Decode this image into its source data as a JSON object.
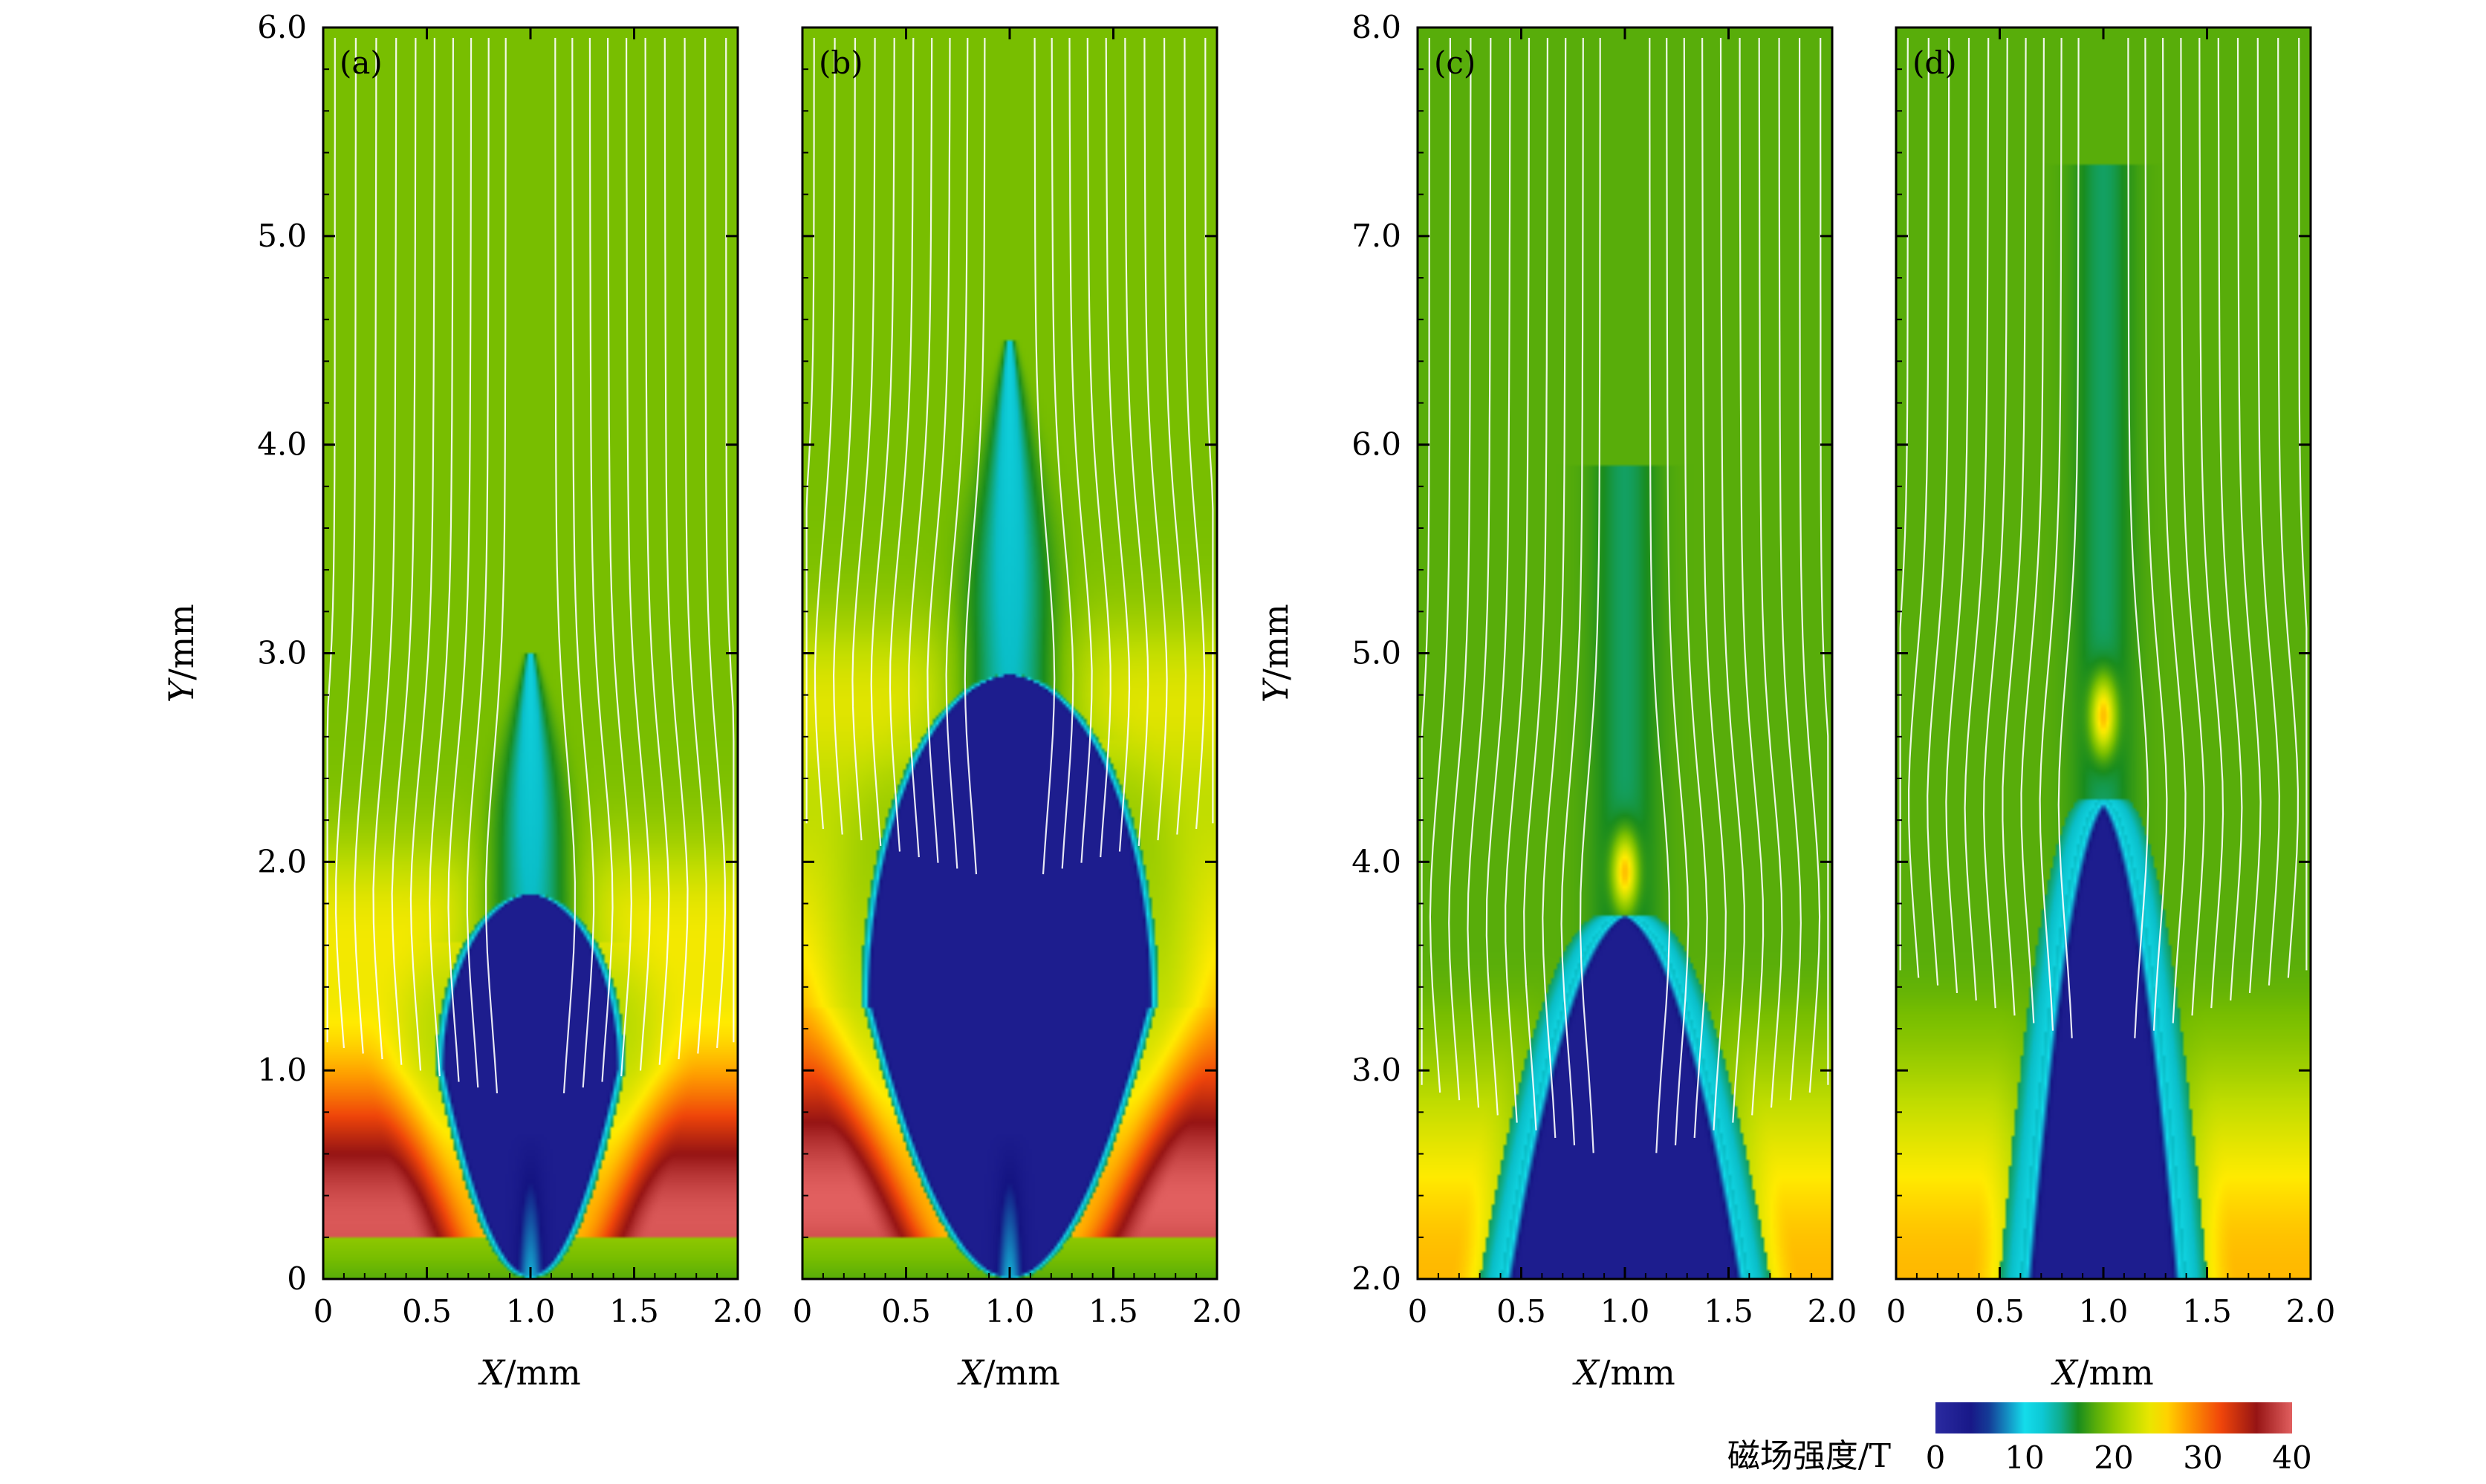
{
  "chart_data": [
    {
      "panel_label": "(a)",
      "type": "heatmap",
      "xlabel_var": "X",
      "xlabel_unit": "/mm",
      "ylabel_var": "Y",
      "ylabel_unit": "/mm",
      "xlim": [
        0,
        2.0
      ],
      "ylim": [
        0,
        6.0
      ],
      "x_ticks": [
        0,
        0.5,
        1.0,
        1.5,
        2.0
      ],
      "x_tick_labels": [
        "0",
        "0.5",
        "1.0",
        "1.5",
        "2.0"
      ],
      "y_ticks": [
        0,
        1.0,
        2.0,
        3.0,
        4.0,
        5.0,
        6.0
      ],
      "y_tick_labels": [
        "0",
        "1.0",
        "2.0",
        "3.0",
        "4.0",
        "5.0",
        "6.0"
      ],
      "show_y_tick_labels": true,
      "features": {
        "cavity_top": 1.85,
        "cavity_halfwidth": 0.46,
        "cavity_center_y": 1.0,
        "jet_tip": 3.0,
        "jet_width": 0.22,
        "shell_peak_y": 0.4,
        "background_field": 19
      }
    },
    {
      "panel_label": "(b)",
      "type": "heatmap",
      "xlabel_var": "X",
      "xlabel_unit": "/mm",
      "xlim": [
        0,
        2.0
      ],
      "ylim": [
        0,
        6.0
      ],
      "x_ticks": [
        0,
        0.5,
        1.0,
        1.5,
        2.0
      ],
      "x_tick_labels": [
        "0",
        "0.5",
        "1.0",
        "1.5",
        "2.0"
      ],
      "y_ticks": [
        0,
        1.0,
        2.0,
        3.0,
        4.0,
        5.0,
        6.0
      ],
      "show_y_tick_labels": false,
      "features": {
        "cavity_top": 2.9,
        "cavity_halfwidth": 0.72,
        "cavity_center_y": 1.3,
        "jet_tip": 4.5,
        "jet_width": 0.25,
        "shell_peak_y": 0.45,
        "background_field": 19
      }
    },
    {
      "panel_label": "(c)",
      "type": "heatmap",
      "xlabel_var": "X",
      "xlabel_unit": "/mm",
      "ylabel_var": "Y",
      "ylabel_unit": "/mm",
      "xlim": [
        0,
        2.0
      ],
      "ylim": [
        2.0,
        8.0
      ],
      "x_ticks": [
        0,
        0.5,
        1.0,
        1.5,
        2.0
      ],
      "x_tick_labels": [
        "0",
        "0.5",
        "1.0",
        "1.5",
        "2.0"
      ],
      "y_ticks": [
        2.0,
        3.0,
        4.0,
        5.0,
        6.0,
        7.0,
        8.0
      ],
      "y_tick_labels": [
        "2.0",
        "3.0",
        "4.0",
        "5.0",
        "6.0",
        "7.0",
        "8.0"
      ],
      "show_y_tick_labels": true,
      "features": {
        "cavity_top": 3.75,
        "cavity_halfwidth": 0.6,
        "jet_tip": 5.9,
        "jet_width": 0.13,
        "hotspot_y": 3.95,
        "background_field": 18
      }
    },
    {
      "panel_label": "(d)",
      "type": "heatmap",
      "xlabel_var": "X",
      "xlabel_unit": "/mm",
      "xlim": [
        0,
        2.0
      ],
      "ylim": [
        2.0,
        8.0
      ],
      "x_ticks": [
        0,
        0.5,
        1.0,
        1.5,
        2.0
      ],
      "x_tick_labels": [
        "0",
        "0.5",
        "1.0",
        "1.5",
        "2.0"
      ],
      "y_ticks": [
        2.0,
        3.0,
        4.0,
        5.0,
        6.0,
        7.0,
        8.0
      ],
      "show_y_tick_labels": false,
      "features": {
        "cavity_top": 4.3,
        "cavity_halfwidth": 0.4,
        "jet_tip": 7.35,
        "jet_width": 0.12,
        "hotspot_y": 4.7,
        "background_field": 18
      }
    }
  ],
  "colorbar": {
    "label": "磁场强度/T",
    "min": 0,
    "max": 40,
    "ticks": [
      0,
      10,
      20,
      30,
      40
    ],
    "tick_labels": [
      "0",
      "10",
      "20",
      "30",
      "40"
    ],
    "colors": [
      "#2a2a9a",
      "#1b1b85",
      "#12c8e6",
      "#10c6d8",
      "#1a8f1a",
      "#0f8a2a",
      "#9acd00",
      "#ffee00",
      "#ff8c00",
      "#e83010",
      "#8b1515",
      "#e06060"
    ]
  }
}
